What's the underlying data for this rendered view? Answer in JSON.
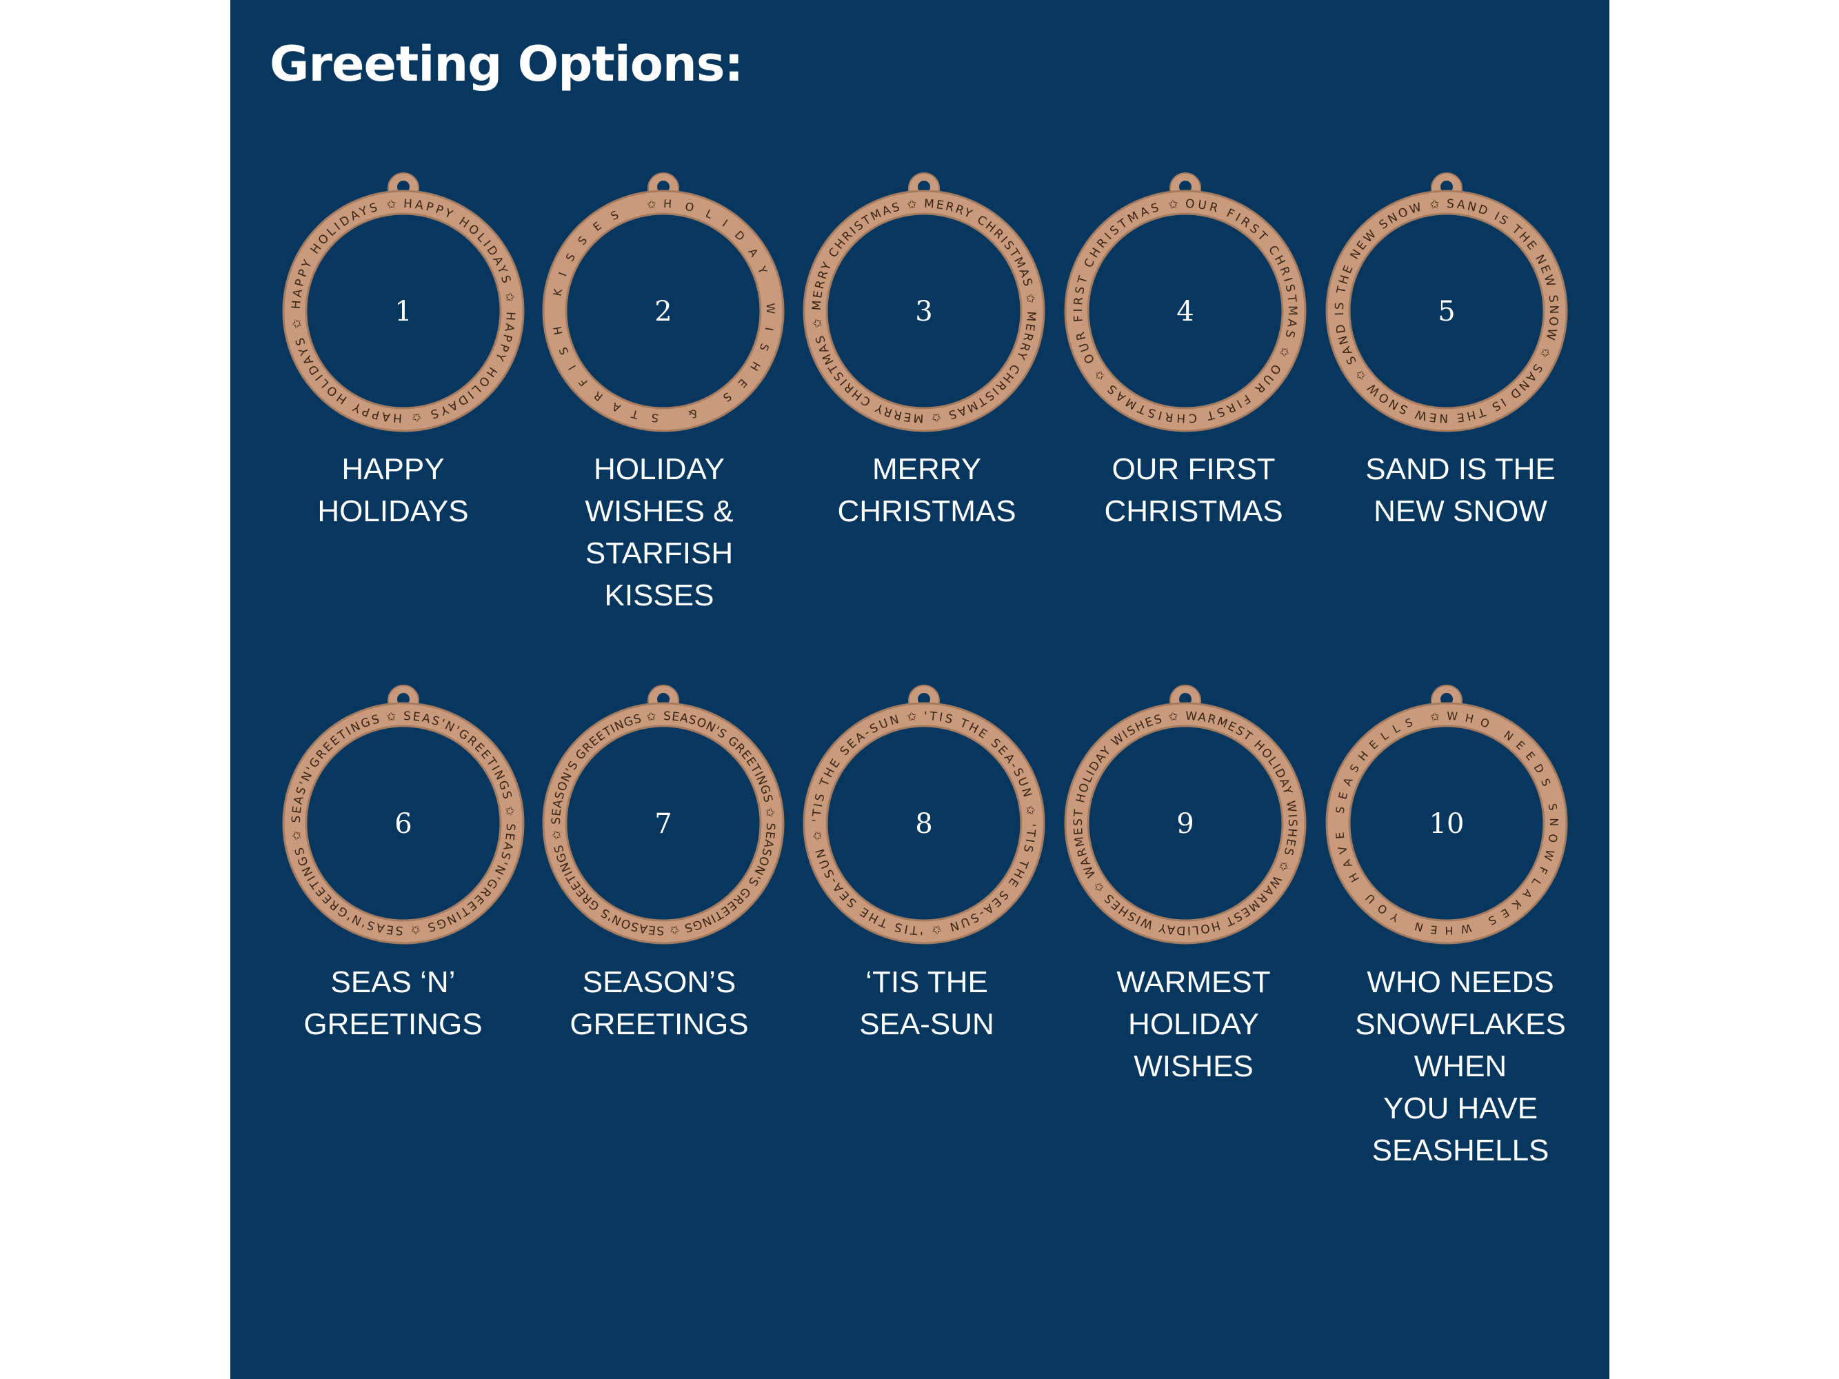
{
  "title": "Greeting Options:",
  "colors": {
    "background": "#07375e",
    "wood": "#c99a7c",
    "wood_edge": "#a67c60",
    "engraving": "#3a2416",
    "text": "#ffffff"
  },
  "ornaments": [
    {
      "number": "1",
      "ring_text": "HAPPY HOLIDAYS",
      "label": "HAPPY\nHOLIDAYS"
    },
    {
      "number": "2",
      "ring_text": "HOLIDAY WISHES & STARFISH KISSES",
      "label": "HOLIDAY\nWISHES &\nSTARFISH\nKISSES"
    },
    {
      "number": "3",
      "ring_text": "MERRY CHRISTMAS",
      "label": "MERRY\nCHRISTMAS"
    },
    {
      "number": "4",
      "ring_text": "OUR FIRST CHRISTMAS",
      "label": "OUR FIRST\nCHRISTMAS"
    },
    {
      "number": "5",
      "ring_text": "SAND IS THE NEW SNOW",
      "label": "SAND IS THE\nNEW SNOW"
    },
    {
      "number": "6",
      "ring_text": "SEAS'N'GREETINGS",
      "label": "SEAS ‘N’\nGREETINGS"
    },
    {
      "number": "7",
      "ring_text": "SEASON'S GREETINGS",
      "label": "SEASON’S\nGREETINGS"
    },
    {
      "number": "8",
      "ring_text": "'TIS THE SEA-SUN",
      "label": "‘TIS THE\nSEA-SUN"
    },
    {
      "number": "9",
      "ring_text": "WARMEST HOLIDAY WISHES",
      "label": "WARMEST\nHOLIDAY\nWISHES"
    },
    {
      "number": "10",
      "ring_text": "WHO NEEDS SNOWFLAKES WHEN YOU HAVE SEASHELLS",
      "label": "WHO NEEDS\nSNOWFLAKES\nWHEN\nYOU HAVE\nSEASHELLS"
    }
  ]
}
